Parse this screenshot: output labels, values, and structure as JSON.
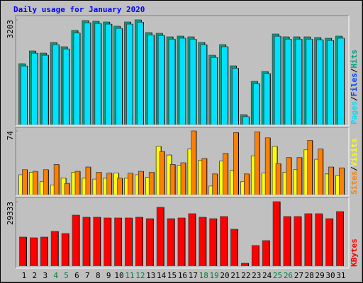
{
  "chart_data": [
    {
      "type": "bar",
      "title": "Daily usage for January 2020",
      "ylim": [
        0,
        3203
      ],
      "yticks": [
        3203
      ],
      "legend_separator": "/",
      "series": [
        {
          "name": "Pages",
          "color": "#00e0ff",
          "values": [
            1790,
            2180,
            2120,
            2440,
            2310,
            2800,
            3110,
            3090,
            3070,
            2940,
            3070,
            3130,
            2740,
            2720,
            2610,
            2640,
            2610,
            2440,
            2050,
            2380,
            1720,
            240,
            1250,
            1560,
            2700,
            2610,
            2610,
            2610,
            2590,
            2570,
            2640
          ]
        },
        {
          "name": "Files",
          "color": "#0040ff",
          "values": [
            1790,
            2180,
            2120,
            2440,
            2310,
            2800,
            3110,
            3090,
            3070,
            2940,
            3070,
            3130,
            2740,
            2720,
            2610,
            2640,
            2610,
            2440,
            2050,
            2380,
            1720,
            240,
            1250,
            1560,
            2700,
            2610,
            2610,
            2610,
            2590,
            2570,
            2640
          ]
        },
        {
          "name": "Hits",
          "color": "#00a080",
          "values": [
            1861,
            2251,
            2186,
            2511,
            2381,
            2878,
            3181,
            3160,
            3138,
            3008,
            3138,
            3203,
            2813,
            2792,
            2684,
            2705,
            2684,
            2511,
            2121,
            2446,
            1796,
            303,
            1320,
            1623,
            2770,
            2684,
            2684,
            2684,
            2662,
            2640,
            2705
          ]
        }
      ]
    },
    {
      "type": "bar",
      "ylim": [
        0,
        74
      ],
      "yticks": [
        74
      ],
      "legend_separator": "/",
      "series": [
        {
          "name": "Sites",
          "color": "#ff8000",
          "values": [
            29,
            27,
            29,
            35,
            13,
            27,
            32,
            26,
            25,
            19,
            25,
            27,
            26,
            50,
            35,
            37,
            74,
            42,
            24,
            48,
            72,
            24,
            73,
            66,
            36,
            43,
            43,
            63,
            53,
            32,
            31
          ]
        },
        {
          "name": "Visits",
          "color": "#ffff00",
          "values": [
            23,
            26,
            15,
            11,
            19,
            26,
            19,
            18,
            19,
            25,
            19,
            23,
            20,
            56,
            46,
            34,
            53,
            40,
            10,
            39,
            28,
            15,
            45,
            25,
            56,
            26,
            29,
            52,
            41,
            24,
            22
          ]
        }
      ]
    },
    {
      "type": "bar",
      "ylim": [
        0,
        29333
      ],
      "yticks": [
        29333
      ],
      "categories": [
        "1",
        "2",
        "3",
        "4",
        "5",
        "6",
        "7",
        "8",
        "9",
        "10",
        "11",
        "12",
        "13",
        "14",
        "15",
        "16",
        "17",
        "18",
        "19",
        "20",
        "21",
        "22",
        "23",
        "24",
        "25",
        "26",
        "27",
        "28",
        "29",
        "30",
        "31"
      ],
      "highlight_categories": [
        "4",
        "5",
        "11",
        "12",
        "18",
        "19",
        "25",
        "26"
      ],
      "highlight_color": "#008040",
      "series": [
        {
          "name": "KBytes",
          "color": "#ff0000",
          "values": [
            13216,
            12894,
            13216,
            15795,
            14828,
            23209,
            22242,
            22242,
            21919,
            21919,
            21919,
            22242,
            21597,
            26755,
            21597,
            21919,
            23853,
            22242,
            21597,
            22564,
            16762,
            1289,
            9348,
            11604,
            29333,
            22564,
            22564,
            23853,
            23853,
            21597,
            24821
          ]
        }
      ]
    }
  ]
}
